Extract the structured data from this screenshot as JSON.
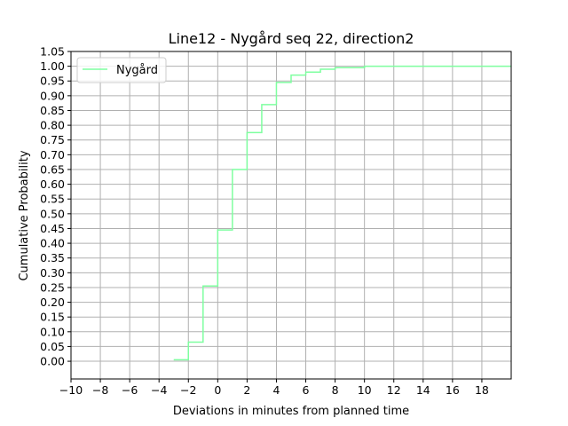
{
  "chart_data": {
    "type": "line",
    "title": "Line12 - Nygård seq 22, direction2",
    "xlabel": "Deviations in minutes from planned time",
    "ylabel": "Cumulative Probability",
    "xlim": [
      -10,
      20
    ],
    "ylim": [
      -0.06,
      1.05
    ],
    "x_ticks": [
      -10,
      -8,
      -6,
      -4,
      -2,
      0,
      2,
      4,
      6,
      8,
      10,
      12,
      14,
      16,
      18
    ],
    "x_tick_labels": [
      "−10",
      "−8",
      "−6",
      "−4",
      "−2",
      "0",
      "2",
      "4",
      "6",
      "8",
      "10",
      "12",
      "14",
      "16",
      "18"
    ],
    "y_ticks": [
      0.0,
      0.05,
      0.1,
      0.15,
      0.2,
      0.25,
      0.3,
      0.35,
      0.4,
      0.45,
      0.5,
      0.55,
      0.6,
      0.65,
      0.7,
      0.75,
      0.8,
      0.85,
      0.9,
      0.95,
      1.0,
      1.05
    ],
    "y_tick_labels": [
      "0.00",
      "0.05",
      "0.10",
      "0.15",
      "0.20",
      "0.25",
      "0.30",
      "0.35",
      "0.40",
      "0.45",
      "0.50",
      "0.55",
      "0.60",
      "0.65",
      "0.70",
      "0.75",
      "0.80",
      "0.85",
      "0.90",
      "0.95",
      "1.00",
      "1.05"
    ],
    "grid": true,
    "legend_position": "top-left",
    "series": [
      {
        "name": "Nygård",
        "color": "#7fffa0",
        "step": "post",
        "x": [
          -3,
          -2,
          -1,
          0,
          1,
          2,
          3,
          4,
          5,
          6,
          7,
          8,
          10,
          20
        ],
        "y": [
          0.005,
          0.065,
          0.255,
          0.445,
          0.65,
          0.775,
          0.87,
          0.945,
          0.97,
          0.98,
          0.99,
          0.995,
          1.0,
          1.0
        ]
      }
    ]
  }
}
